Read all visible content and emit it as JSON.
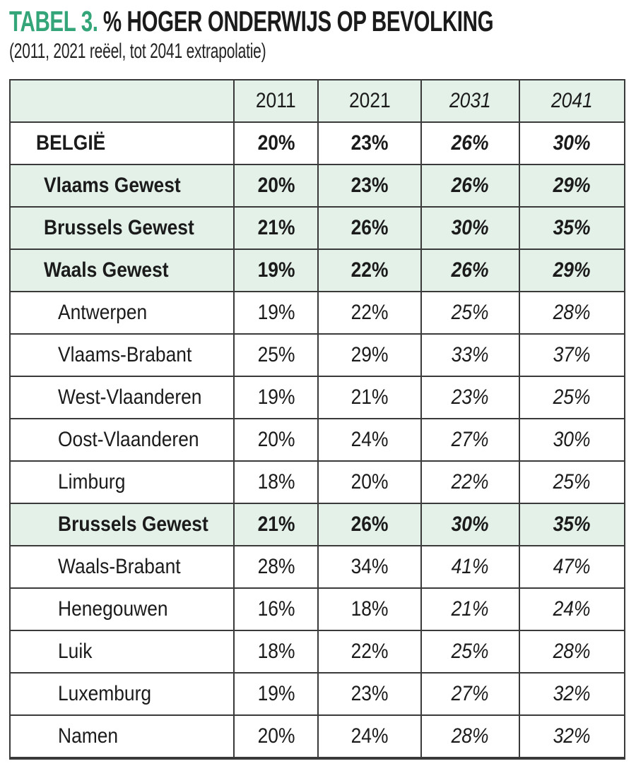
{
  "title": {
    "label": "TABEL 3.",
    "text": "% HOGER ONDERWIJS OP BEVOLKING",
    "subtitle": "(2011, 2021 reëel, tot 2041 extrapolatie)"
  },
  "colors": {
    "accent_green": "#33a578",
    "row_green": "#e3f1e9",
    "border": "#3a3a3a",
    "text": "#1b1b1b"
  },
  "table": {
    "columns": [
      "",
      "2011",
      "2021",
      "2031",
      "2041"
    ],
    "rows": [
      {
        "name": "BELGIË",
        "style": "country",
        "values": [
          "20%",
          "23%",
          "26%",
          "30%"
        ]
      },
      {
        "name": "Vlaams Gewest",
        "style": "region",
        "values": [
          "20%",
          "23%",
          "26%",
          "29%"
        ]
      },
      {
        "name": "Brussels Gewest",
        "style": "region",
        "values": [
          "21%",
          "26%",
          "30%",
          "35%"
        ]
      },
      {
        "name": "Waals Gewest",
        "style": "region",
        "values": [
          "19%",
          "22%",
          "26%",
          "29%"
        ]
      },
      {
        "name": "Antwerpen",
        "style": "province",
        "values": [
          "19%",
          "22%",
          "25%",
          "28%"
        ]
      },
      {
        "name": "Vlaams-Brabant",
        "style": "province",
        "values": [
          "25%",
          "29%",
          "33%",
          "37%"
        ]
      },
      {
        "name": "West-Vlaanderen",
        "style": "province",
        "values": [
          "19%",
          "21%",
          "23%",
          "25%"
        ]
      },
      {
        "name": "Oost-Vlaanderen",
        "style": "province",
        "values": [
          "20%",
          "24%",
          "27%",
          "30%"
        ]
      },
      {
        "name": "Limburg",
        "style": "province",
        "values": [
          "18%",
          "20%",
          "22%",
          "25%"
        ]
      },
      {
        "name": "Brussels Gewest",
        "style": "region-inline",
        "values": [
          "21%",
          "26%",
          "30%",
          "35%"
        ]
      },
      {
        "name": "Waals-Brabant",
        "style": "province",
        "values": [
          "28%",
          "34%",
          "41%",
          "47%"
        ]
      },
      {
        "name": "Henegouwen",
        "style": "province",
        "values": [
          "16%",
          "18%",
          "21%",
          "24%"
        ]
      },
      {
        "name": "Luik",
        "style": "province",
        "values": [
          "18%",
          "22%",
          "25%",
          "28%"
        ]
      },
      {
        "name": "Luxemburg",
        "style": "province",
        "values": [
          "19%",
          "23%",
          "27%",
          "32%"
        ]
      },
      {
        "name": "Namen",
        "style": "province",
        "values": [
          "20%",
          "24%",
          "28%",
          "32%"
        ]
      }
    ]
  }
}
